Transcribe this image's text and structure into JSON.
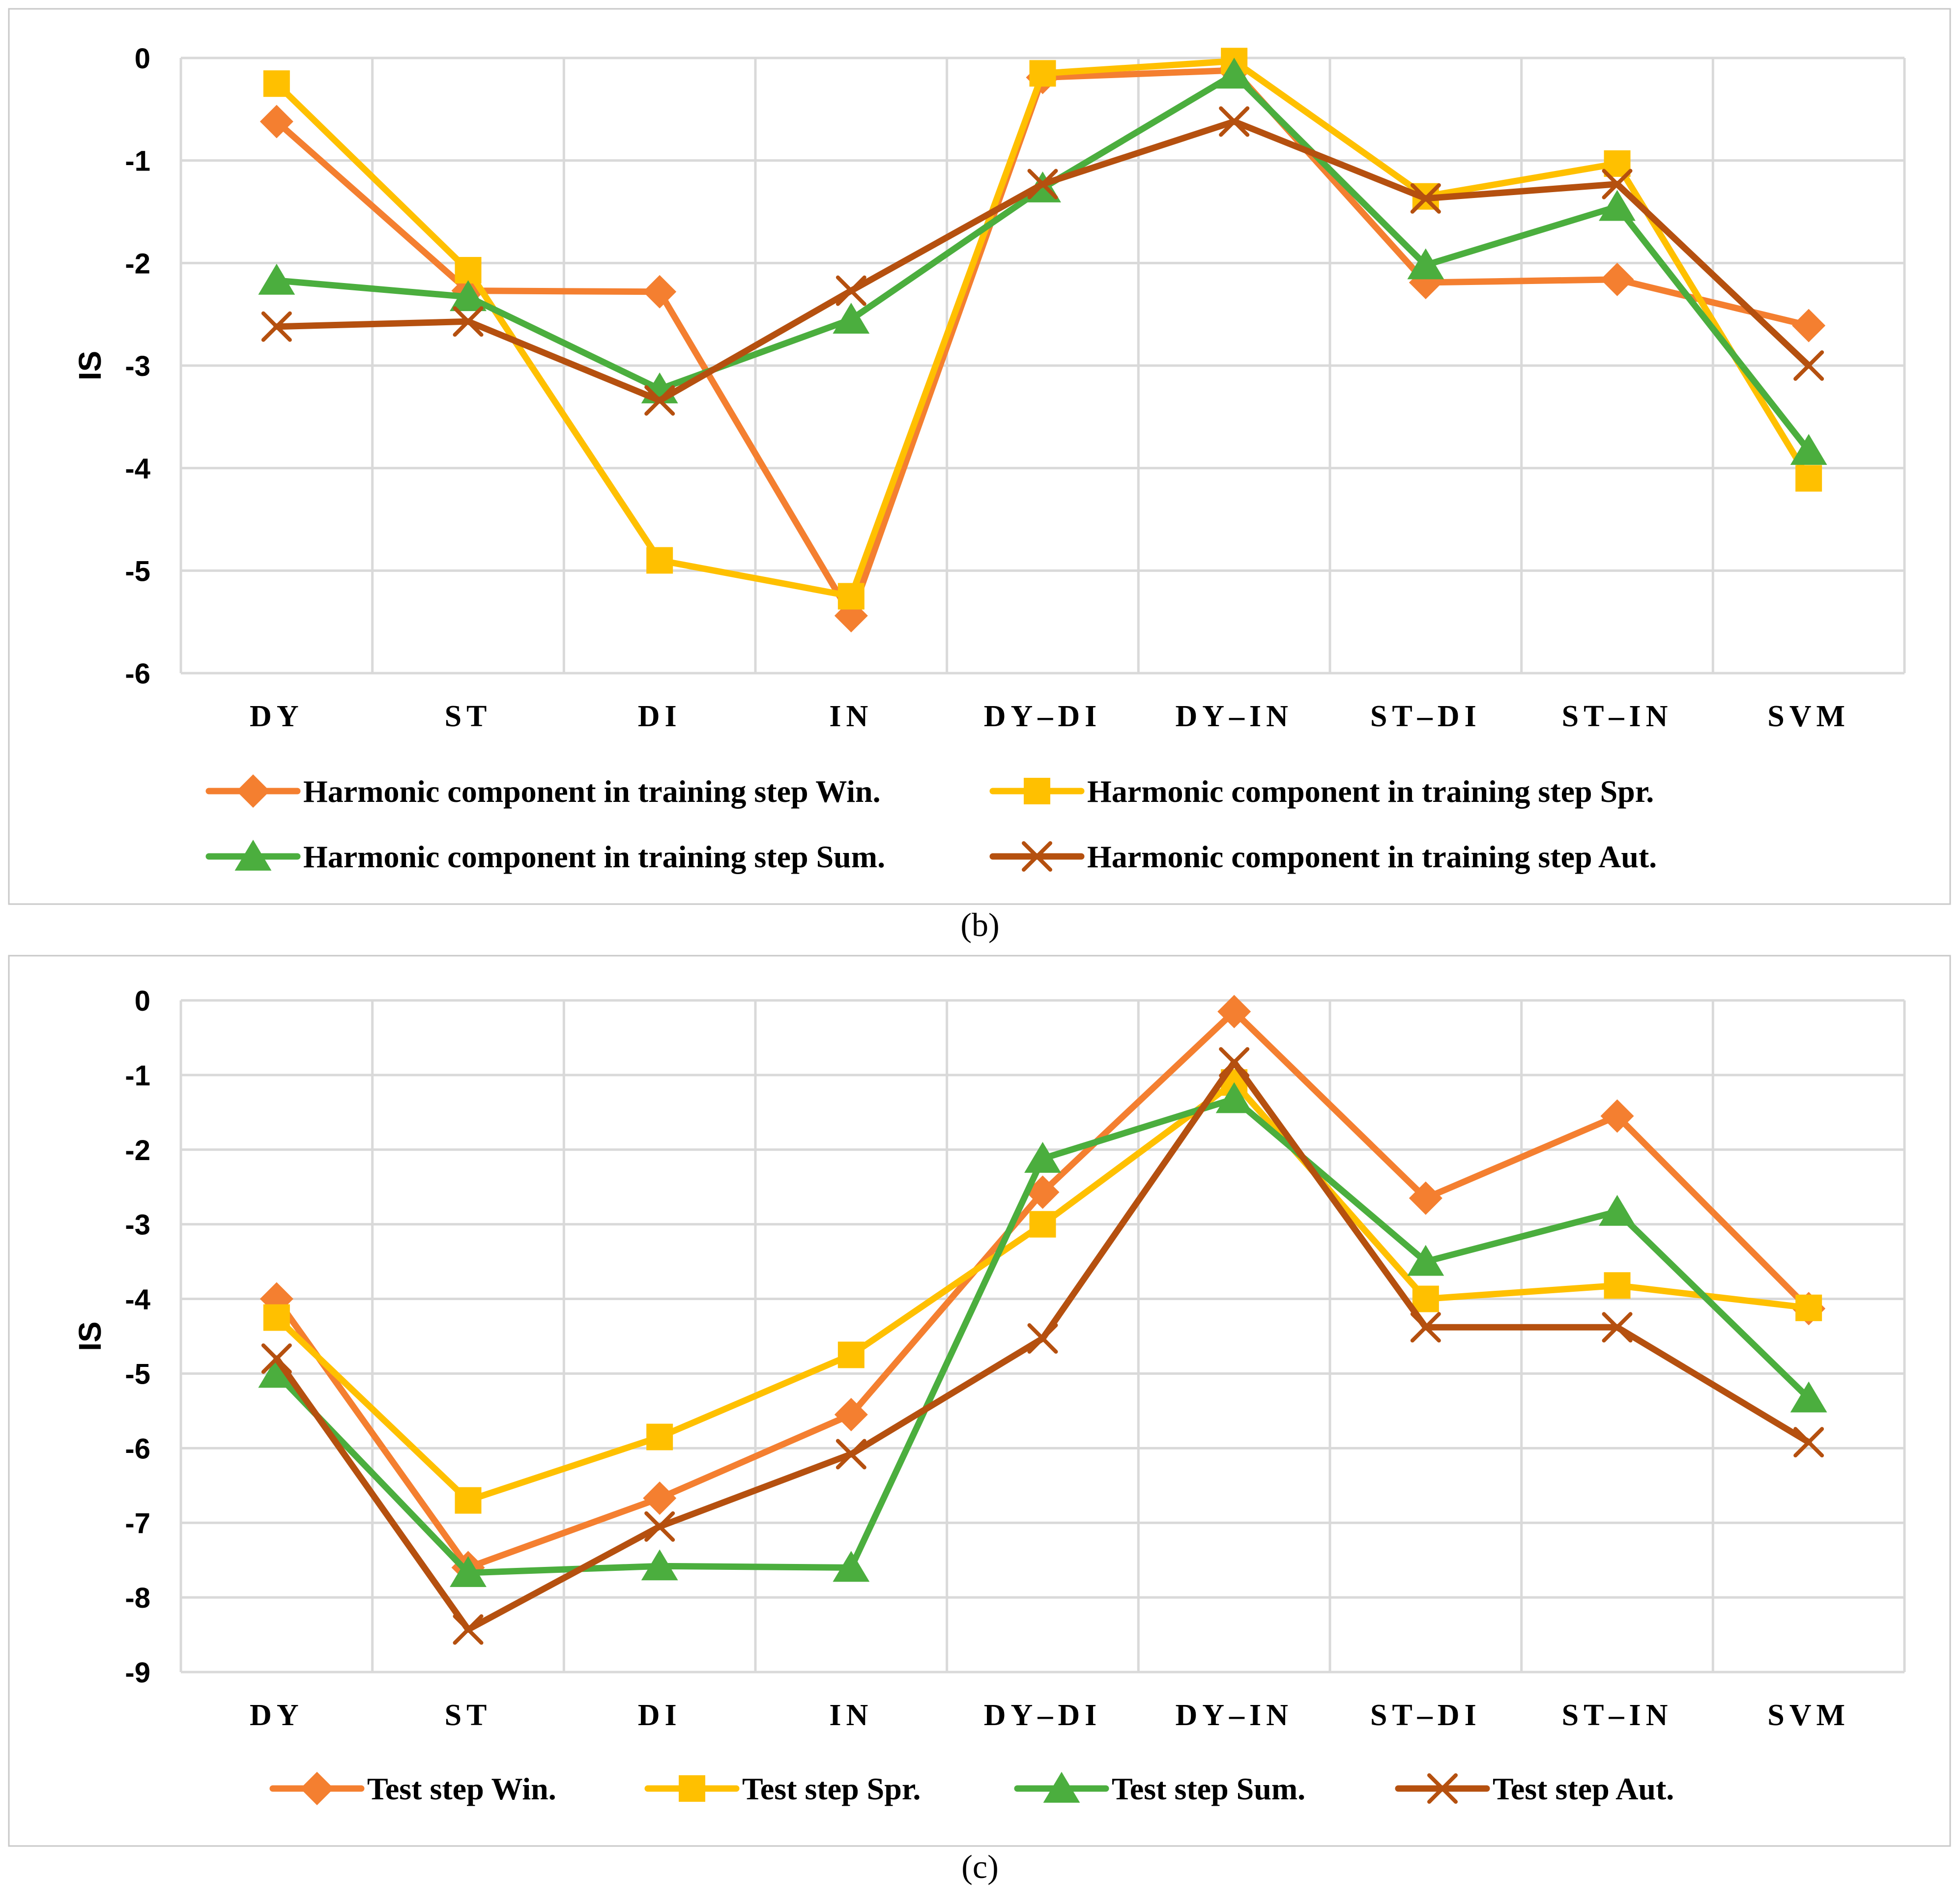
{
  "chart_data": [
    {
      "type": "line",
      "caption": "(b)",
      "ylabel": "IS",
      "ylim": [
        -6,
        0
      ],
      "ytick_step": 1,
      "grid": true,
      "legend_position": "bottom",
      "categories": [
        "DY",
        "ST",
        "DI",
        "IN",
        "DY–DI",
        "DY–IN",
        "ST–DI",
        "ST–IN",
        "SVM"
      ],
      "series": [
        {
          "name": "Harmonic component in training step Win.",
          "color": "#F47F30",
          "marker": "diamond",
          "values": [
            -0.62,
            -2.27,
            -2.28,
            -5.44,
            -0.19,
            -0.12,
            -2.19,
            -2.16,
            -2.61
          ]
        },
        {
          "name": "Harmonic component in training step Spr.",
          "color": "#FFC000",
          "marker": "square",
          "values": [
            -0.25,
            -2.07,
            -4.9,
            -5.25,
            -0.15,
            -0.03,
            -1.35,
            -1.03,
            -4.1
          ]
        },
        {
          "name": "Harmonic component in training step Sum.",
          "color": "#4BAE3E",
          "marker": "triangle",
          "values": [
            -2.17,
            -2.33,
            -3.23,
            -2.55,
            -1.27,
            -0.16,
            -2.02,
            -1.45,
            -3.83
          ]
        },
        {
          "name": "Harmonic component in training step Aut.",
          "color": "#B5500F",
          "marker": "x",
          "values": [
            -2.62,
            -2.57,
            -3.34,
            -2.27,
            -1.23,
            -0.62,
            -1.37,
            -1.23,
            -3.0
          ]
        }
      ]
    },
    {
      "type": "line",
      "caption": "(c)",
      "ylabel": "IS",
      "ylim": [
        -9,
        0
      ],
      "ytick_step": 1,
      "grid": true,
      "legend_position": "bottom",
      "categories": [
        "DY",
        "ST",
        "DI",
        "IN",
        "DY–DI",
        "DY–IN",
        "ST–DI",
        "ST–IN",
        "SVM"
      ],
      "series": [
        {
          "name": "Test step Win.",
          "color": "#F47F30",
          "marker": "diamond",
          "values": [
            -4.0,
            -7.6,
            -6.67,
            -5.55,
            -2.57,
            -0.15,
            -2.65,
            -1.55,
            -4.13
          ]
        },
        {
          "name": "Test step Spr.",
          "color": "#FFC000",
          "marker": "square",
          "values": [
            -4.25,
            -6.7,
            -5.85,
            -4.75,
            -3.0,
            -1.1,
            -4.0,
            -3.82,
            -4.12
          ]
        },
        {
          "name": "Test step Sum.",
          "color": "#4BAE3E",
          "marker": "triangle",
          "values": [
            -5.0,
            -7.67,
            -7.58,
            -7.6,
            -2.12,
            -1.32,
            -3.5,
            -2.83,
            -5.33
          ]
        },
        {
          "name": "Test step Aut.",
          "color": "#B5500F",
          "marker": "x",
          "values": [
            -4.8,
            -8.43,
            -7.05,
            -6.08,
            -4.53,
            -0.83,
            -4.38,
            -4.38,
            -5.92
          ]
        }
      ]
    }
  ]
}
